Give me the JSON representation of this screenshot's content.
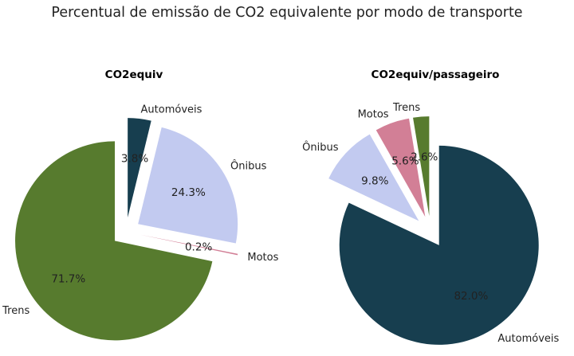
{
  "figure_title": "Percentual de emissão de CO2 equivalente por modo de transporte",
  "colors": {
    "Automóveis": "#173e4f",
    "Ônibus": "#c2caf0",
    "Motos": "#d27f96",
    "Trens": "#577b2e"
  },
  "chart_data": [
    {
      "type": "pie",
      "title": "CO2equiv",
      "categories": [
        "Automóveis",
        "Ônibus",
        "Motos",
        "Trens"
      ],
      "values": [
        3.8,
        24.3,
        0.2,
        71.7
      ],
      "value_labels": [
        "3.8%",
        "24.3%",
        "0.2%",
        "71.7%"
      ],
      "exploded": true
    },
    {
      "type": "pie",
      "title": "CO2equiv/passageiro",
      "categories": [
        "Automóveis",
        "Ônibus",
        "Motos",
        "Trens"
      ],
      "values": [
        82.0,
        9.8,
        5.6,
        2.6
      ],
      "value_labels": [
        "82.0%",
        "9.8%",
        "5.6%",
        "2.6%"
      ],
      "exploded": true
    }
  ]
}
